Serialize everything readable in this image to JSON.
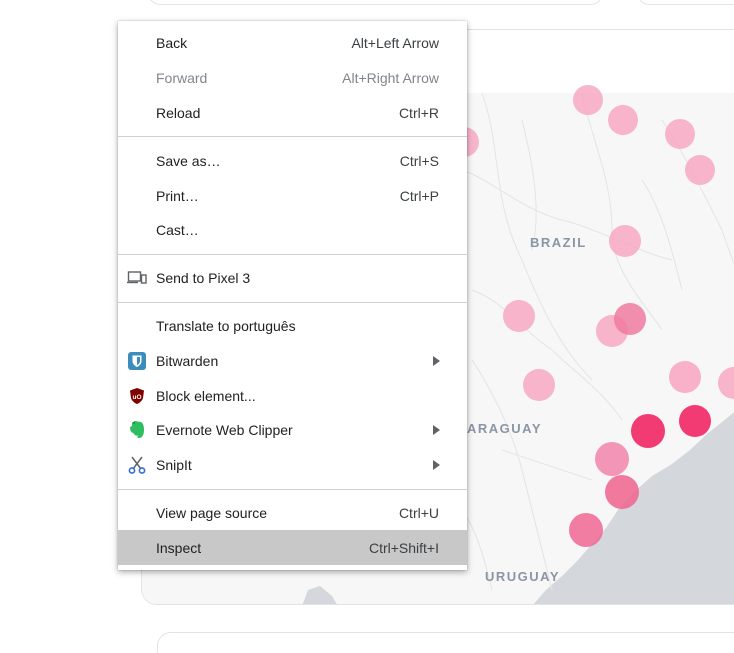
{
  "map": {
    "labels": {
      "brazil": "BRAZIL",
      "paraguay": "ARAGUAY",
      "uruguay": "URUGUAY"
    },
    "colors": {
      "land": "#f7f7f7",
      "ocean": "#d4d7db",
      "border": "#e6e6e6",
      "marker_light": "#f7a8c2",
      "marker_strong": "#f0306a"
    }
  },
  "context_menu": {
    "groups": [
      [
        {
          "label": "Back",
          "shortcut": "Alt+Left Arrow"
        },
        {
          "label": "Forward",
          "shortcut": "Alt+Right Arrow",
          "disabled": true
        },
        {
          "label": "Reload",
          "shortcut": "Ctrl+R"
        }
      ],
      [
        {
          "label": "Save as…",
          "shortcut": "Ctrl+S"
        },
        {
          "label": "Print…",
          "shortcut": "Ctrl+P"
        },
        {
          "label": "Cast…",
          "shortcut": ""
        }
      ],
      [
        {
          "label": "Send to Pixel 3",
          "shortcut": "",
          "icon": "devices-icon"
        }
      ],
      [
        {
          "label": "Translate to português",
          "shortcut": ""
        },
        {
          "label": "Bitwarden",
          "shortcut": "",
          "icon": "bitwarden-icon",
          "submenu": true
        },
        {
          "label": "Block element...",
          "shortcut": "",
          "icon": "ublock-icon"
        },
        {
          "label": "Evernote Web Clipper",
          "shortcut": "",
          "icon": "evernote-icon",
          "submenu": true
        },
        {
          "label": "SnipIt",
          "shortcut": "",
          "icon": "scissors-icon",
          "submenu": true
        }
      ],
      [
        {
          "label": "View page source",
          "shortcut": "Ctrl+U"
        },
        {
          "label": "Inspect",
          "shortcut": "Ctrl+Shift+I",
          "highlighted": true
        }
      ]
    ]
  }
}
